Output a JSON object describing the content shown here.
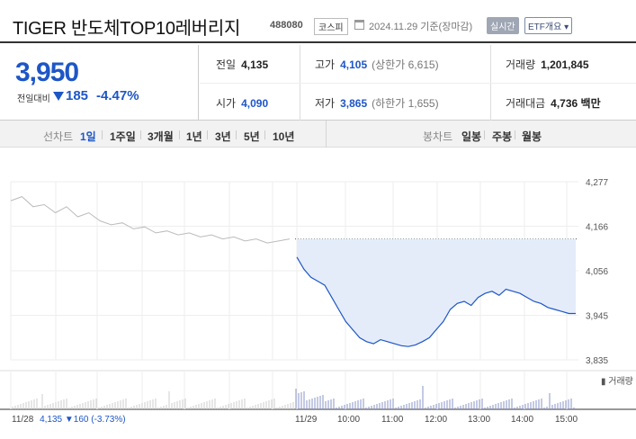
{
  "header": {
    "title": "TIGER 반도체TOP10레버리지",
    "code": "488080",
    "market": "코스피",
    "datetime": "2024.11.29 기준(장마감)",
    "realtime": "실시간",
    "etf": "ETF개요 ▾"
  },
  "price": {
    "current": "3,950",
    "change_label": "전일대비",
    "change": "185",
    "change_pct": "-4.47%",
    "direction": "down"
  },
  "stats": {
    "prev_close_label": "전일",
    "prev_close": "4,135",
    "high_label": "고가",
    "high": "4,105",
    "upper_limit": "(상한가 6,615)",
    "volume_label": "거래량",
    "volume": "1,201,845",
    "open_label": "시가",
    "open": "4,090",
    "low_label": "저가",
    "low": "3,865",
    "lower_limit": "(하한가 1,655)",
    "amount_label": "거래대금",
    "amount": "4,736 백만"
  },
  "periods": {
    "line_label": "선차트",
    "line_items": [
      "1일",
      "1주일",
      "3개월",
      "1년",
      "3년",
      "5년",
      "10년"
    ],
    "active": "1일",
    "candle_label": "봉차트",
    "candle_items": [
      "일봉",
      "주봉",
      "월봉"
    ]
  },
  "colors": {
    "up": "#d12020",
    "down": "#1d56c6",
    "fill": "#e4ecfa"
  },
  "chart_data": {
    "type": "line",
    "y_ticks": [
      "4,277",
      "4,166",
      "4,056",
      "3,945",
      "3,835"
    ],
    "ylim": [
      3835,
      4277
    ],
    "x_ticks": [
      "11/29",
      "10:00",
      "11:00",
      "12:00",
      "13:00",
      "14:00",
      "15:00"
    ],
    "prev_day_label": "11/28",
    "prev_day_summary": "4,135 ▼160 (-3.73%)",
    "baseline": 4135,
    "volume_legend": "거래량",
    "prev_day_series": [
      4230,
      4240,
      4215,
      4220,
      4200,
      4215,
      4190,
      4200,
      4180,
      4170,
      4175,
      4160,
      4165,
      4150,
      4155,
      4145,
      4150,
      4140,
      4145,
      4135,
      4140,
      4130,
      4135,
      4125,
      4130,
      4135
    ],
    "today_series": [
      4090,
      4060,
      4040,
      4030,
      4020,
      3990,
      3960,
      3930,
      3910,
      3890,
      3880,
      3875,
      3885,
      3880,
      3875,
      3870,
      3868,
      3872,
      3880,
      3890,
      3910,
      3930,
      3960,
      3975,
      3980,
      3970,
      3990,
      4000,
      4005,
      3995,
      4010,
      4005,
      4000,
      3990,
      3980,
      3975,
      3965,
      3960,
      3955,
      3950,
      3950
    ]
  }
}
